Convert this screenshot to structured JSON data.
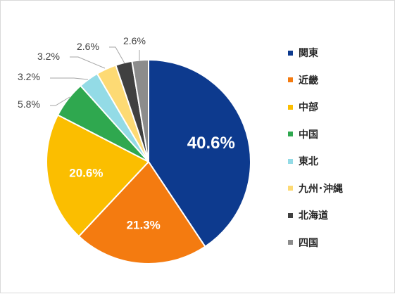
{
  "chart_data": {
    "type": "pie",
    "title": "",
    "start_angle_deg": 0,
    "direction": "clockwise",
    "legend_position": "right",
    "slices": [
      {
        "label": "関東",
        "value": 40.6,
        "display": "40.6%",
        "color": "#0d3a8e",
        "label_placement": "inside"
      },
      {
        "label": "近畿",
        "value": 21.3,
        "display": "21.3%",
        "color": "#f47b10",
        "label_placement": "inside"
      },
      {
        "label": "中部",
        "value": 20.6,
        "display": "20.6%",
        "color": "#fbbe00",
        "label_placement": "inside"
      },
      {
        "label": "中国",
        "value": 5.8,
        "display": "5.8%",
        "color": "#2fa84f",
        "label_placement": "outside"
      },
      {
        "label": "東北",
        "value": 3.2,
        "display": "3.2%",
        "color": "#93dbe6",
        "label_placement": "outside"
      },
      {
        "label": "九州･沖縄",
        "value": 3.2,
        "display": "3.2%",
        "color": "#fdda74",
        "label_placement": "outside"
      },
      {
        "label": "北海道",
        "value": 2.6,
        "display": "2.6%",
        "color": "#404040",
        "label_placement": "outside"
      },
      {
        "label": "四国",
        "value": 2.6,
        "display": "2.6%",
        "color": "#8c8c8c",
        "label_placement": "outside"
      }
    ]
  }
}
